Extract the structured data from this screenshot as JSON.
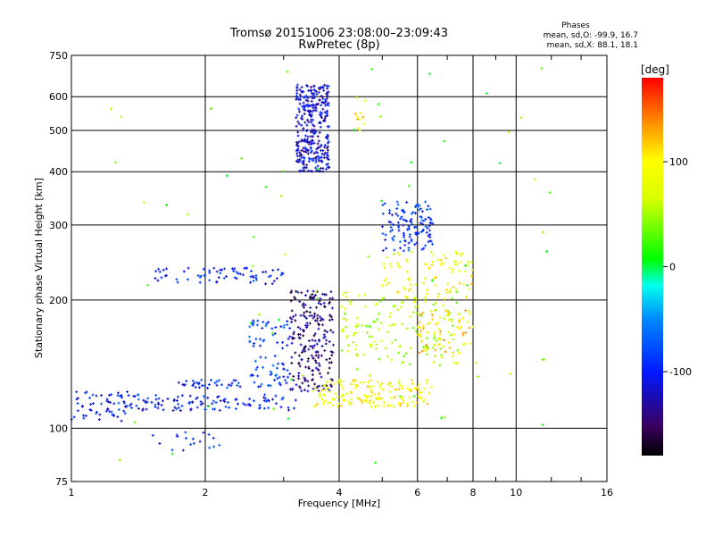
{
  "chart_data": {
    "type": "scatter",
    "title": "Tromsø 20151006 23:08:00–23:09:43",
    "subtitle": "RwPretec (8p)",
    "xlabel": "Frequency [MHz]",
    "ylabel": "Stationary phase Virtual Height [km]",
    "x_scale": "log",
    "y_scale": "log",
    "xlim": [
      1,
      16
    ],
    "ylim": [
      75,
      750
    ],
    "x_ticks": [
      1,
      2,
      4,
      6,
      8,
      10,
      16
    ],
    "y_ticks": [
      75,
      100,
      200,
      300,
      400,
      500,
      600,
      750
    ],
    "grid": true,
    "phase_info": {
      "title": "Phases",
      "line_o": "mean, sd,O: -99.9, 16.7",
      "line_x": "mean, sd,X:  88.1, 18.1"
    },
    "colorbar": {
      "label": "[deg]",
      "ticks": [
        100,
        0,
        -100
      ],
      "range": [
        -180,
        180
      ]
    },
    "clusters": [
      {
        "x": [
          1.0,
          1.35
        ],
        "y": [
          104,
          122
        ],
        "phase": -100,
        "n": 60
      },
      {
        "x": [
          1.35,
          3.2
        ],
        "y": [
          110,
          120
        ],
        "phase": -100,
        "n": 110
      },
      {
        "x": [
          1.5,
          3.0
        ],
        "y": [
          218,
          238
        ],
        "phase": -100,
        "n": 70
      },
      {
        "x": [
          1.7,
          2.4
        ],
        "y": [
          124,
          130
        ],
        "phase": -100,
        "n": 35
      },
      {
        "x": [
          2.5,
          3.1
        ],
        "y": [
          125,
          180
        ],
        "phase": -85,
        "n": 80
      },
      {
        "x": [
          3.1,
          3.9
        ],
        "y": [
          122,
          210
        ],
        "phase": -140,
        "n": 220
      },
      {
        "x": [
          3.2,
          3.8
        ],
        "y": [
          400,
          640
        ],
        "phase": -115,
        "n": 320
      },
      {
        "x": [
          3.5,
          6.5
        ],
        "y": [
          112,
          130
        ],
        "phase": 95,
        "n": 160
      },
      {
        "x": [
          4.0,
          7.5
        ],
        "y": [
          140,
          210
        ],
        "phase": 60,
        "n": 150
      },
      {
        "x": [
          5.0,
          6.5
        ],
        "y": [
          260,
          340
        ],
        "phase": -90,
        "n": 120
      },
      {
        "x": [
          5.0,
          8.0
        ],
        "y": [
          200,
          260
        ],
        "phase": 90,
        "n": 90
      },
      {
        "x": [
          6.0,
          8.0
        ],
        "y": [
          150,
          190
        ],
        "phase": 110,
        "n": 70
      },
      {
        "x": [
          1.5,
          2.2
        ],
        "y": [
          88,
          98
        ],
        "phase": -100,
        "n": 18
      },
      {
        "x": [
          4.3,
          4.6
        ],
        "y": [
          480,
          600
        ],
        "phase": 100,
        "n": 12
      },
      {
        "x": [
          1.2,
          12.0
        ],
        "y": [
          80,
          700
        ],
        "phase": 30,
        "n": 70
      }
    ]
  }
}
